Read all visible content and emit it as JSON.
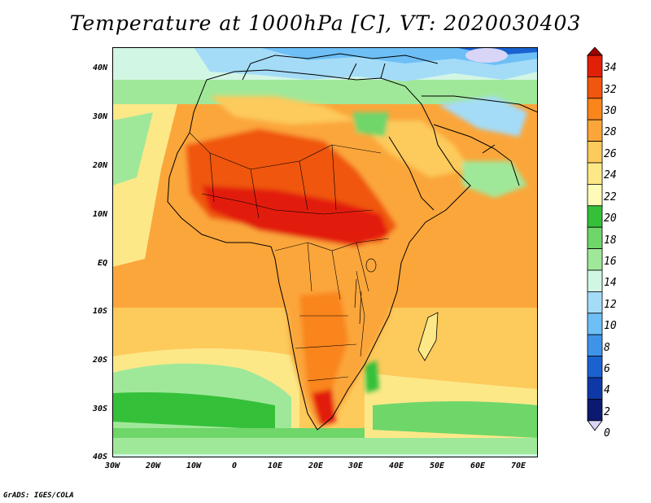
{
  "title": "Temperature at 1000hPa [C], VT: 2020030403",
  "credit": "GrADS: IGES/COLA",
  "map": {
    "variable": "Temperature at 1000hPa",
    "units": "C",
    "lon_range": [
      -30,
      75
    ],
    "lat_range": [
      -40,
      45
    ],
    "lat_ticks": [
      "40N",
      "30N",
      "20N",
      "10N",
      "EQ",
      "10S",
      "20S",
      "30S",
      "40S"
    ],
    "lon_ticks": [
      "30W",
      "20W",
      "10W",
      "0",
      "10E",
      "20E",
      "30E",
      "40E",
      "50E",
      "60E",
      "70E"
    ]
  },
  "colorbar": {
    "levels": [
      "34",
      "32",
      "30",
      "28",
      "26",
      "24",
      "22",
      "20",
      "18",
      "16",
      "14",
      "12",
      "10",
      "8",
      "6",
      "4",
      "2",
      "0"
    ],
    "colors": [
      "#a00000",
      "#e21f07",
      "#f0560f",
      "#f9851b",
      "#fba63a",
      "#fdca5c",
      "#fde888",
      "#fefbb8",
      "#35c03a",
      "#6fd66a",
      "#a0e899",
      "#d2f6e4",
      "#a4dcf8",
      "#6dbff6",
      "#3e94e8",
      "#1b62d1",
      "#0e38a6",
      "#0b1970",
      "#d8d5f7"
    ]
  }
}
